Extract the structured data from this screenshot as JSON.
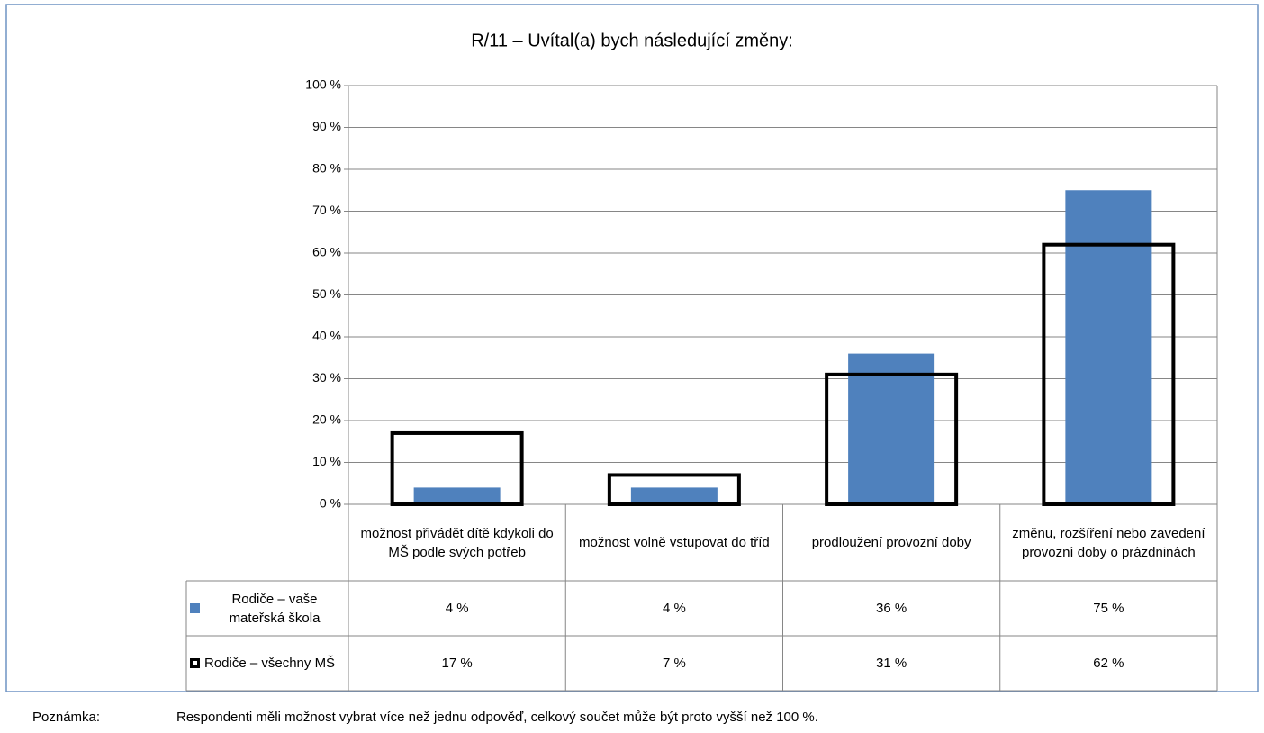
{
  "chart_data": {
    "type": "bar",
    "title": "R/11 – Uvítal(a) bych následující změny:",
    "categories": [
      "možnost přivádět dítě kdykoli do MŠ podle svých potřeb",
      "možnost volně vstupovat do tříd",
      "prodloužení provozní doby",
      "změnu, rozšíření nebo zavedení provozní doby o prázdninách"
    ],
    "series": [
      {
        "name": "Rodiče – vaše mateřská škola",
        "color": "#4f81bd",
        "values": [
          4,
          4,
          36,
          75
        ],
        "value_labels": [
          "4 %",
          "4 %",
          "36 %",
          "75 %"
        ]
      },
      {
        "name": "Rodiče – všechny MŠ",
        "color": "#000000",
        "values": [
          17,
          7,
          31,
          62
        ],
        "value_labels": [
          "17 %",
          "7 %",
          "31 %",
          "62 %"
        ]
      }
    ],
    "ylim": [
      0,
      100
    ],
    "yticks": [
      {
        "value": 0,
        "label": "0 %"
      },
      {
        "value": 10,
        "label": "10 %"
      },
      {
        "value": 20,
        "label": "20 %"
      },
      {
        "value": 30,
        "label": "30 %"
      },
      {
        "value": 40,
        "label": "40 %"
      },
      {
        "value": 50,
        "label": "50 %"
      },
      {
        "value": 60,
        "label": "60 %"
      },
      {
        "value": 70,
        "label": "70 %"
      },
      {
        "value": 80,
        "label": "80 %"
      },
      {
        "value": 90,
        "label": "90 %"
      },
      {
        "value": 100,
        "label": "100 %"
      }
    ],
    "grid": true,
    "note_label": "Poznámka:",
    "note": "Respondenti měli možnost vybrat více než jednu odpověď, celkový součet může být proto vyšší než 100 %."
  }
}
